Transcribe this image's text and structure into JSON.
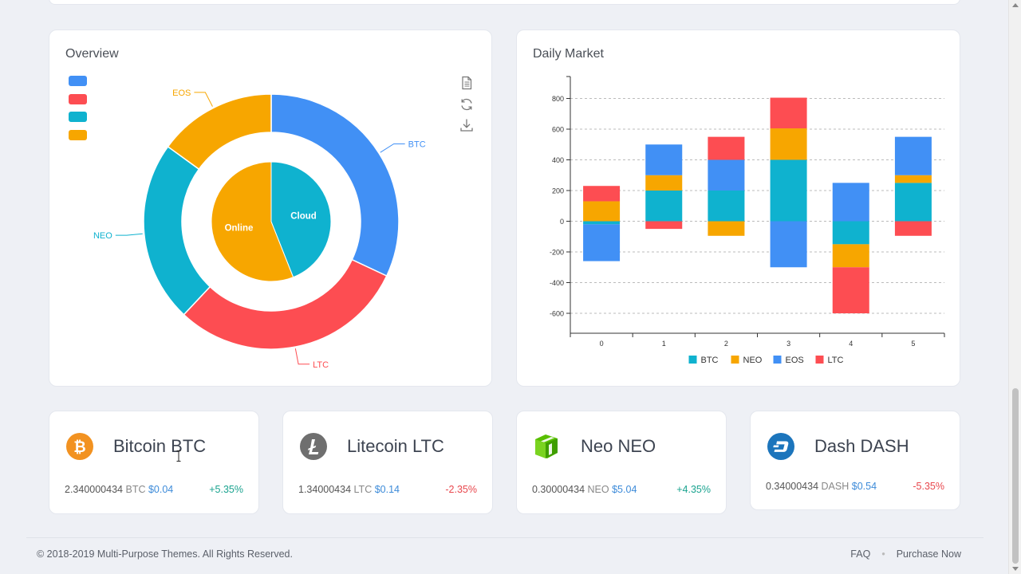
{
  "overview": {
    "title": "Overview",
    "legend_colors": [
      "#4190f5",
      "#fd4d52",
      "#0fb2cf",
      "#f7a600"
    ],
    "tools": [
      "data-view-icon",
      "refresh-icon",
      "download-icon"
    ],
    "outer_ring": [
      {
        "label": "BTC",
        "value": 32,
        "color": "#4190f5"
      },
      {
        "label": "LTC",
        "value": 30,
        "color": "#fd4d52"
      },
      {
        "label": "NEO",
        "value": 23,
        "color": "#0fb2cf"
      },
      {
        "label": "EOS",
        "value": 15,
        "color": "#f7a600"
      }
    ],
    "inner_pie": [
      {
        "label": "Cloud",
        "value": 44,
        "color": "#0fb2cf"
      },
      {
        "label": "Online",
        "value": 56,
        "color": "#f7a600"
      }
    ]
  },
  "daily_market": {
    "title": "Daily Market",
    "chart_data": {
      "type": "bar",
      "stacked": true,
      "categories": [
        "0",
        "1",
        "2",
        "3",
        "4",
        "5"
      ],
      "ylim": [
        -730,
        800
      ],
      "yticks": [
        800,
        600,
        400,
        200,
        0,
        -200,
        -400,
        -600
      ],
      "series": [
        {
          "name": "BTC",
          "color": "#0fb2cf",
          "values": [
            -20,
            200,
            200,
            400,
            -150,
            250
          ]
        },
        {
          "name": "NEO",
          "color": "#f7a600",
          "values": [
            130,
            100,
            -95,
            205,
            -150,
            50
          ]
        },
        {
          "name": "EOS",
          "color": "#4190f5",
          "values": [
            -240,
            200,
            200,
            -300,
            250,
            250
          ]
        },
        {
          "name": "LTC",
          "color": "#fd4d52",
          "values": [
            100,
            -50,
            150,
            200,
            -300,
            -95
          ]
        }
      ],
      "grid": true,
      "legend_position": "bottom"
    }
  },
  "coins": [
    {
      "name": "Bitcoin BTC",
      "icon": "bitcoin-icon",
      "amount": "2.340000434",
      "unit": "BTC",
      "usd": "$0.04",
      "change": "+5.35%",
      "direction": "up"
    },
    {
      "name": "Litecoin LTC",
      "icon": "litecoin-icon",
      "amount": "1.34000434",
      "unit": "LTC",
      "usd": "$0.14",
      "change": "-2.35%",
      "direction": "down"
    },
    {
      "name": "Neo NEO",
      "icon": "neo-icon",
      "amount": "0.30000434",
      "unit": "NEO",
      "usd": "$5.04",
      "change": "+4.35%",
      "direction": "up"
    },
    {
      "name": "Dash DASH",
      "icon": "dash-icon",
      "amount": "0.34000434",
      "unit": "DASH",
      "usd": "$0.54",
      "change": "-5.35%",
      "direction": "down"
    }
  ],
  "footer": {
    "copyright": "© 2018-2019 Multi-Purpose Themes. All Rights Reserved.",
    "faq": "FAQ",
    "purchase": "Purchase Now"
  }
}
